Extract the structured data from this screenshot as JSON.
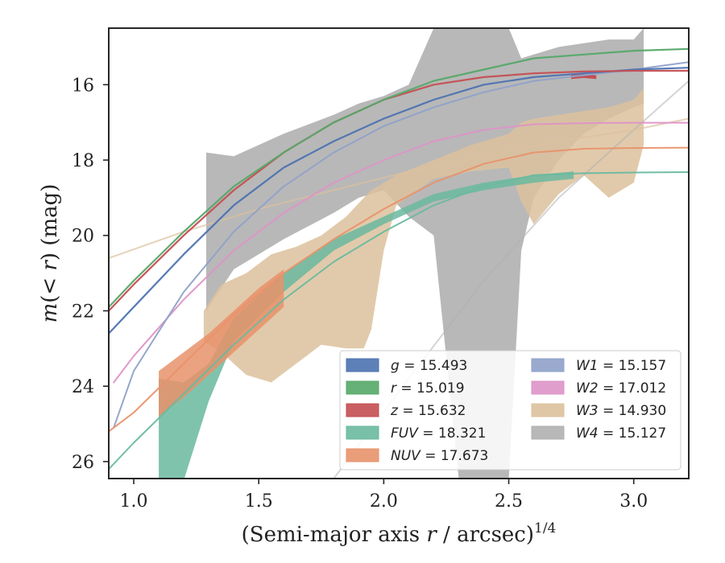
{
  "chart_data": {
    "type": "line",
    "xlabel": "(Semi-major axis r / arcsec)^(1/4)",
    "ylabel": "m(< r) (mag)",
    "xlim": [
      0.9,
      3.22
    ],
    "ylim": [
      26.45,
      14.5
    ],
    "y_inverted": true,
    "xticks": [
      "1.0",
      "1.5",
      "2.0",
      "2.5",
      "3.0"
    ],
    "yticks": [
      "16",
      "18",
      "20",
      "22",
      "24",
      "26"
    ],
    "grid": false,
    "legend_placement": "lower-right",
    "legend_columns": 2,
    "series": [
      {
        "name": "g = 15.493",
        "band": "g",
        "value": "15.493",
        "color": "#4c72b0",
        "x": [
          0.9,
          1.0,
          1.2,
          1.4,
          1.6,
          1.8,
          2.0,
          2.2,
          2.4,
          2.6,
          2.8,
          3.0,
          3.22
        ],
        "y": [
          22.6,
          21.9,
          20.5,
          19.2,
          18.2,
          17.5,
          16.9,
          16.4,
          16.0,
          15.8,
          15.7,
          15.6,
          15.55
        ],
        "band_x": [],
        "band_lo": [],
        "band_hi": []
      },
      {
        "name": "r = 15.019",
        "band": "r",
        "value": "15.019",
        "color": "#55a868",
        "x": [
          0.9,
          1.0,
          1.2,
          1.4,
          1.6,
          1.8,
          2.0,
          2.2,
          2.4,
          2.6,
          2.8,
          3.0,
          3.22
        ],
        "y": [
          21.9,
          21.2,
          19.9,
          18.7,
          17.8,
          17.0,
          16.4,
          15.9,
          15.6,
          15.3,
          15.2,
          15.1,
          15.05
        ],
        "band_x": [],
        "band_lo": [],
        "band_hi": []
      },
      {
        "name": "z = 15.632",
        "band": "z",
        "value": "15.632",
        "color": "#c44e52",
        "x": [
          0.9,
          1.0,
          1.2,
          1.4,
          1.6,
          1.8,
          2.0,
          2.2,
          2.4,
          2.6,
          2.8,
          3.0,
          3.22
        ],
        "y": [
          22.0,
          21.3,
          20.0,
          18.8,
          17.8,
          17.0,
          16.4,
          16.0,
          15.8,
          15.7,
          15.65,
          15.63,
          15.63
        ],
        "band_x": [
          2.75,
          2.8,
          2.85
        ],
        "band_lo": [
          15.75,
          15.72,
          15.75
        ],
        "band_hi": [
          15.85,
          15.82,
          15.85
        ]
      },
      {
        "name": "FUV = 18.321",
        "band": "FUV",
        "value": "18.321",
        "color": "#6ab99f",
        "x": [
          0.9,
          1.0,
          1.2,
          1.4,
          1.6,
          1.8,
          2.0,
          2.2,
          2.4,
          2.6,
          2.8,
          3.0,
          3.22
        ],
        "y": [
          26.2,
          25.5,
          24.2,
          22.9,
          21.7,
          20.7,
          19.9,
          19.2,
          18.7,
          18.4,
          18.35,
          18.33,
          18.32
        ],
        "band_x": [
          1.1,
          1.2,
          1.3,
          1.4,
          1.6,
          1.8,
          2.0,
          2.1,
          2.2,
          2.4,
          2.6,
          2.76
        ],
        "band_lo": [
          23.8,
          23.9,
          23.4,
          22.2,
          21.0,
          20.1,
          19.5,
          19.2,
          18.9,
          18.6,
          18.4,
          18.3
        ],
        "band_hi": [
          26.5,
          26.5,
          24.4,
          22.8,
          21.5,
          20.4,
          19.7,
          19.4,
          19.1,
          18.8,
          18.6,
          18.5
        ]
      },
      {
        "name": "NUV = 17.673",
        "band": "NUV",
        "value": "17.673",
        "color": "#e8926a",
        "x": [
          0.9,
          1.0,
          1.2,
          1.4,
          1.6,
          1.8,
          2.0,
          2.2,
          2.4,
          2.6,
          2.8,
          3.0,
          3.22
        ],
        "y": [
          25.2,
          24.7,
          23.4,
          22.1,
          21.0,
          20.1,
          19.3,
          18.6,
          18.1,
          17.8,
          17.7,
          17.68,
          17.67
        ],
        "band_x": [
          1.1,
          1.2,
          1.3,
          1.4,
          1.5,
          1.6
        ],
        "band_lo": [
          23.6,
          23.1,
          22.6,
          22.0,
          21.4,
          20.9
        ],
        "band_hi": [
          24.8,
          24.3,
          23.7,
          23.1,
          22.5,
          21.9
        ]
      },
      {
        "name": "W1 = 15.157",
        "band": "W1",
        "value": "15.157",
        "color": "#8fa1c9",
        "x": [
          0.92,
          1.0,
          1.2,
          1.4,
          1.6,
          1.8,
          2.0,
          2.2,
          2.4,
          2.6,
          2.8,
          3.0,
          3.22
        ],
        "y": [
          25.1,
          23.6,
          21.5,
          19.9,
          18.7,
          17.8,
          17.1,
          16.6,
          16.2,
          15.9,
          15.75,
          15.6,
          15.4
        ],
        "band_x": [],
        "band_lo": [],
        "band_hi": []
      },
      {
        "name": "W2 = 17.012",
        "band": "W2",
        "value": "17.012",
        "color": "#dd93c6",
        "x": [
          0.92,
          1.0,
          1.2,
          1.4,
          1.6,
          1.8,
          2.0,
          2.2,
          2.4,
          2.6,
          2.8,
          3.0,
          3.22
        ],
        "y": [
          23.9,
          23.2,
          21.7,
          20.4,
          19.4,
          18.6,
          18.0,
          17.5,
          17.2,
          17.05,
          17.02,
          17.01,
          17.01
        ],
        "band_x": [],
        "band_lo": [],
        "band_hi": []
      },
      {
        "name": "W3 = 14.930",
        "band": "W3",
        "value": "14.930",
        "color": "#dcc19c",
        "x": [
          0.9,
          1.2,
          1.5,
          1.8,
          2.1,
          2.4,
          2.7,
          3.0,
          3.22
        ],
        "y": [
          20.6,
          19.9,
          19.3,
          18.8,
          18.3,
          17.9,
          17.5,
          17.2,
          16.9
        ],
        "band_x": [
          1.28,
          1.35,
          1.45,
          1.55,
          1.65,
          1.75,
          1.85,
          1.92,
          1.95,
          2.0,
          2.05,
          2.2,
          2.35,
          2.5,
          2.55,
          2.6,
          2.7,
          2.8,
          2.9,
          3.0,
          3.04
        ],
        "band_lo": [
          22.0,
          21.3,
          21.0,
          20.5,
          20.3,
          20.0,
          19.5,
          19.0,
          18.8,
          18.6,
          18.4,
          18.0,
          17.6,
          17.3,
          17.0,
          16.9,
          16.8,
          16.7,
          16.6,
          16.4,
          16.1
        ],
        "band_hi": [
          22.8,
          23.1,
          23.7,
          23.9,
          23.4,
          22.9,
          23.0,
          23.0,
          22.5,
          20.4,
          19.2,
          18.5,
          18.3,
          18.2,
          19.1,
          19.7,
          18.9,
          18.4,
          19.0,
          18.6,
          17.6
        ]
      },
      {
        "name": "W4 = 15.127",
        "band": "W4",
        "value": "15.127",
        "color": "#b0b0b0",
        "x": [
          1.8,
          2.1,
          2.4,
          2.7,
          3.0,
          3.22
        ],
        "y": [
          26.45,
          23.8,
          21.2,
          19.0,
          17.2,
          15.9
        ],
        "band_x": [
          1.29,
          1.4,
          1.6,
          1.8,
          1.9,
          2.0,
          2.1,
          2.2,
          2.3,
          2.35,
          2.45,
          2.5,
          2.55,
          2.6,
          2.7,
          2.8,
          2.9,
          3.0,
          3.04
        ],
        "band_lo": [
          17.8,
          17.9,
          17.3,
          16.8,
          16.5,
          16.3,
          16.0,
          14.5,
          14.5,
          14.5,
          14.5,
          14.5,
          15.3,
          15.2,
          15.0,
          14.9,
          14.8,
          14.8,
          14.5
        ],
        "band_hi": [
          22.0,
          20.9,
          20.1,
          19.4,
          19.0,
          18.8,
          19.5,
          20.0,
          26.45,
          26.45,
          26.45,
          26.45,
          20.4,
          19.0,
          18.0,
          17.3,
          16.9,
          16.6,
          16.5
        ]
      }
    ]
  }
}
